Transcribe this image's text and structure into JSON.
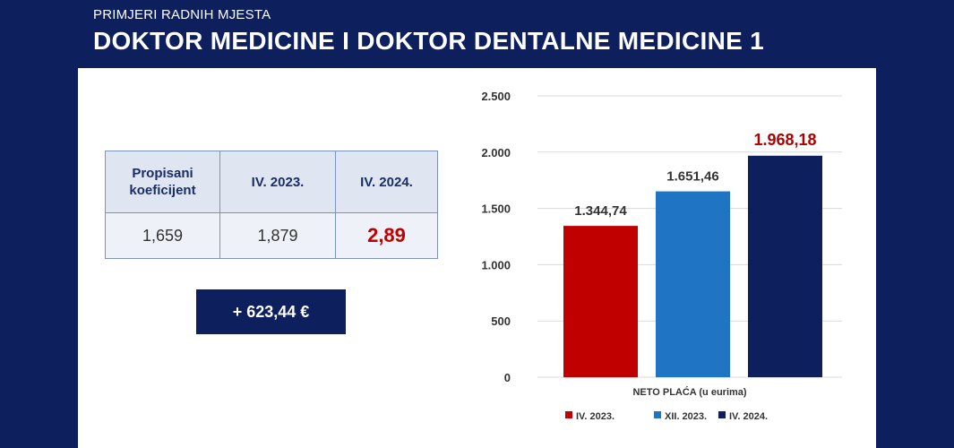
{
  "header": {
    "subtitle": "PRIMJERI RADNIH MJESTA",
    "title": "DOKTOR MEDICINE I DOKTOR DENTALNE MEDICINE 1"
  },
  "table": {
    "headers": [
      "Propisani koeficijent",
      "IV. 2023.",
      "IV. 2024."
    ],
    "values": [
      "1,659",
      "1,879",
      "2,89"
    ]
  },
  "delta_label": "+ 623,44 €",
  "colors": {
    "red": "#c00000",
    "blue": "#1f74c4",
    "navy": "#0d1f5c"
  },
  "chart_data": {
    "type": "bar",
    "categories": [
      "NETO PLAĆA (u eurima)"
    ],
    "series": [
      {
        "name": "IV. 2023.",
        "values": [
          1344.74
        ],
        "label": "1.344,74",
        "color": "#c00000"
      },
      {
        "name": "XII. 2023.",
        "values": [
          1651.46
        ],
        "label": "1.651,46",
        "color": "#1f74c4"
      },
      {
        "name": "IV. 2024.",
        "values": [
          1968.18
        ],
        "label": "1.968,18",
        "color": "#0d1f5c"
      }
    ],
    "ylim": [
      0,
      2500
    ],
    "yticks": [
      0,
      500,
      1000,
      1500,
      2000,
      2500
    ],
    "ytick_labels": [
      "0",
      "500",
      "1.000",
      "1.500",
      "2.000",
      "2.500"
    ],
    "xlabel": "NETO PLAĆA (u eurima)",
    "ylabel": "",
    "grid": true,
    "legend": "bottom"
  }
}
